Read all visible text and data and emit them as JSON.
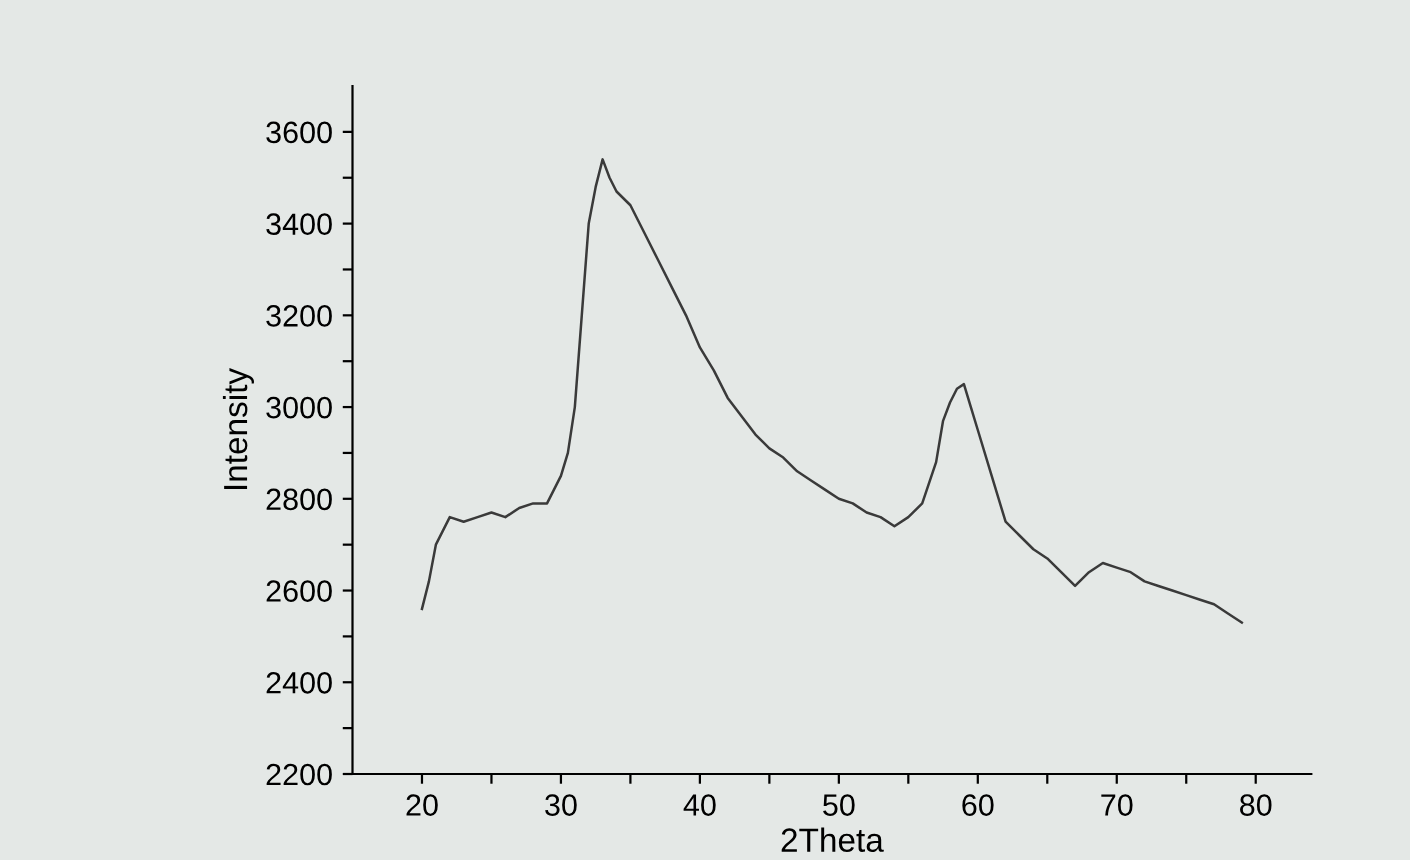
{
  "chart_data": {
    "type": "line",
    "xlabel": "2Theta",
    "ylabel": "Intensity",
    "x": [
      20,
      20.5,
      21,
      21.5,
      22,
      23,
      24,
      25,
      26,
      27,
      28,
      29,
      29.5,
      30,
      30.5,
      31,
      31.5,
      32,
      32.5,
      33,
      33.5,
      34,
      35,
      36,
      37,
      38,
      39,
      40,
      41,
      42,
      43,
      44,
      45,
      46,
      47,
      48,
      49,
      50,
      51,
      52,
      53,
      54,
      55,
      56,
      57,
      57.5,
      58,
      58.5,
      59,
      59.5,
      60,
      61,
      62,
      63,
      64,
      65,
      66,
      67,
      68,
      69,
      70,
      71,
      72,
      73,
      74,
      75,
      76,
      77,
      78,
      79
    ],
    "series": [
      {
        "color": "#3a3a3a",
        "values": [
          2560,
          2620,
          2700,
          2730,
          2760,
          2750,
          2760,
          2770,
          2760,
          2780,
          2790,
          2790,
          2820,
          2850,
          2900,
          3000,
          3200,
          3400,
          3480,
          3540,
          3500,
          3470,
          3440,
          3380,
          3320,
          3260,
          3200,
          3130,
          3080,
          3020,
          2980,
          2940,
          2910,
          2890,
          2860,
          2840,
          2820,
          2800,
          2790,
          2770,
          2760,
          2740,
          2760,
          2790,
          2880,
          2970,
          3010,
          3040,
          3050,
          3000,
          2950,
          2850,
          2750,
          2720,
          2690,
          2670,
          2640,
          2610,
          2640,
          2660,
          2650,
          2640,
          2620,
          2610,
          2600,
          2590,
          2580,
          2570,
          2550,
          2530
        ]
      }
    ],
    "xlim": [
      15,
      84
    ],
    "xticks": [
      20,
      {
        "value": 25,
        "label": null
      },
      30,
      {
        "value": 35,
        "label": null
      },
      40,
      {
        "value": 45,
        "label": null
      },
      50,
      {
        "value": 55,
        "label": null
      },
      60,
      {
        "value": 65,
        "label": null
      },
      70,
      {
        "value": 75,
        "label": null
      },
      80
    ],
    "ylim": [
      2200,
      3700
    ],
    "yticks": [
      2200,
      {
        "value": 2300,
        "label": null
      },
      2400,
      {
        "value": 2500,
        "label": null
      },
      2600,
      {
        "value": 2700,
        "label": null
      },
      2800,
      {
        "value": 2900,
        "label": null
      },
      3000,
      {
        "value": 3100,
        "label": null
      },
      3200,
      {
        "value": 3300,
        "label": null
      },
      3400,
      {
        "value": 3500,
        "label": null
      },
      3600
    ],
    "grid": false,
    "legend": false,
    "marker": "none",
    "line_style": "solid"
  }
}
